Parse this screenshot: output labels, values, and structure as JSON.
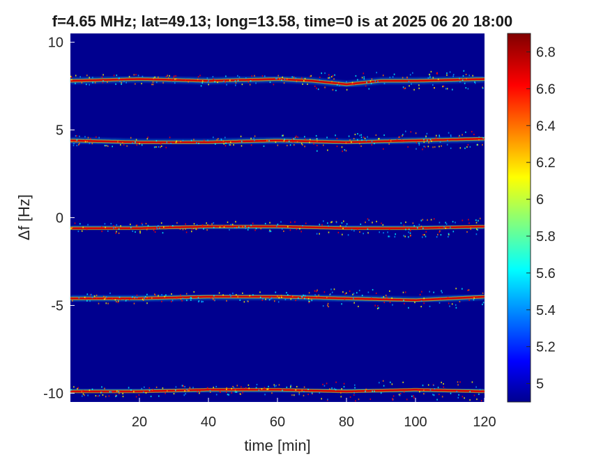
{
  "chart_data": {
    "type": "heatmap",
    "title": "f=4.65 MHz;  lat=49.13; long=13.58, time=0 is at 2025 06 20 18:00",
    "xlabel": "time [min]",
    "ylabel": "Δf [Hz]",
    "xlim": [
      0,
      120
    ],
    "ylim": [
      -10.5,
      10.5
    ],
    "xticks": [
      20,
      40,
      60,
      80,
      100,
      120
    ],
    "xtick_labels": [
      "20",
      "40",
      "60",
      "80",
      "100",
      "120"
    ],
    "yticks": [
      10,
      5,
      0,
      -5,
      -10
    ],
    "ytick_labels": [
      "10",
      "5",
      "0",
      "-5",
      "-10"
    ],
    "colorbar": {
      "range": [
        4.9,
        6.9
      ],
      "ticks": [
        6.8,
        6.6,
        6.4,
        6.2,
        6.0,
        5.8,
        5.6,
        5.4,
        5.2,
        5.0
      ],
      "tick_labels": [
        "6.8",
        "6.6",
        "6.4",
        "6.2",
        "6",
        "5.8",
        "5.6",
        "5.4",
        "5.2",
        "5"
      ],
      "colormap": "jet"
    },
    "background_color": "#00008f",
    "series": [
      {
        "center_hz": 7.9,
        "x": [
          0,
          20,
          40,
          60,
          70,
          80,
          90,
          100,
          120
        ],
        "y": [
          7.8,
          7.9,
          7.8,
          7.9,
          7.8,
          7.6,
          7.8,
          7.8,
          7.9
        ]
      },
      {
        "center_hz": 4.4,
        "x": [
          0,
          20,
          40,
          60,
          80,
          100,
          120
        ],
        "y": [
          4.4,
          4.3,
          4.3,
          4.4,
          4.3,
          4.4,
          4.5
        ]
      },
      {
        "center_hz": -0.6,
        "x": [
          0,
          20,
          40,
          60,
          80,
          100,
          120
        ],
        "y": [
          -0.6,
          -0.6,
          -0.5,
          -0.5,
          -0.6,
          -0.6,
          -0.5
        ]
      },
      {
        "center_hz": -4.6,
        "x": [
          0,
          20,
          40,
          60,
          80,
          100,
          120
        ],
        "y": [
          -4.6,
          -4.6,
          -4.5,
          -4.5,
          -4.6,
          -4.7,
          -4.5
        ]
      },
      {
        "center_hz": -9.9,
        "x": [
          0,
          20,
          40,
          60,
          80,
          100,
          120
        ],
        "y": [
          -9.9,
          -9.9,
          -9.8,
          -9.8,
          -9.9,
          -9.8,
          -9.9
        ]
      }
    ]
  }
}
